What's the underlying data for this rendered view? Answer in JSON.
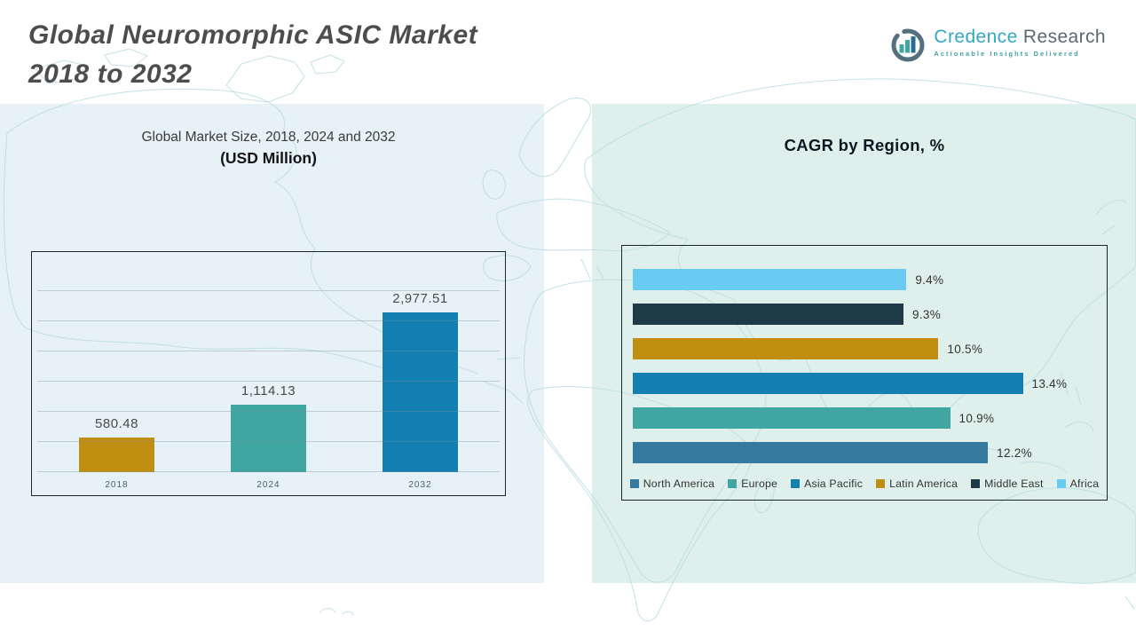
{
  "header": {
    "title_line1": "Global Neuromorphic ASIC Market",
    "title_line2": "2018 to 2032"
  },
  "logo": {
    "brand_primary": "Credence",
    "brand_secondary": "Research",
    "tagline": "Actionable Insights Delivered"
  },
  "chart_data": [
    {
      "id": "market_size",
      "type": "bar",
      "orientation": "vertical",
      "title": "Global Market Size, 2018, 2024 and 2032",
      "subtitle": "(USD Million)",
      "categories": [
        "2018",
        "2024",
        "2032"
      ],
      "values": [
        580.48,
        1114.13,
        2977.51
      ],
      "value_labels": [
        "580.48",
        "1,114.13",
        "2,977.51"
      ],
      "bar_colors": [
        "#C08E11",
        "#41A6A1",
        "#1480B1"
      ],
      "ylim": [
        0,
        3000
      ],
      "grid_step": 500,
      "grid": true,
      "legend_position": "none"
    },
    {
      "id": "cagr_by_region",
      "type": "bar",
      "orientation": "horizontal",
      "title": "CAGR by Region, %",
      "categories": [
        "Africa",
        "Middle East",
        "Latin America",
        "Asia Pacific",
        "Europe",
        "North America"
      ],
      "values": [
        9.4,
        9.3,
        10.5,
        13.4,
        10.9,
        12.2
      ],
      "value_labels": [
        "9.4%",
        "9.3%",
        "10.5%",
        "13.4%",
        "10.9%",
        "12.2%"
      ],
      "bar_colors": [
        "#69CBF1",
        "#1F3A47",
        "#C08E11",
        "#1480B1",
        "#41A6A1",
        "#35799C"
      ],
      "xlim": [
        0,
        14
      ],
      "grid": false,
      "legend_position": "bottom",
      "legend": [
        {
          "label": "North America",
          "color": "#35799C"
        },
        {
          "label": "Europe",
          "color": "#41A6A1"
        },
        {
          "label": "Asia Pacific",
          "color": "#1480B1"
        },
        {
          "label": "Latin America",
          "color": "#C08E11"
        },
        {
          "label": "Middle East",
          "color": "#1F3A47"
        },
        {
          "label": "Africa",
          "color": "#69CBF1"
        }
      ]
    }
  ],
  "colors": {
    "left_panel_bg": "#E7F1F8",
    "right_panel_bg": "#DFF0EC",
    "map_stroke": "#B9DCE2",
    "title_text": "#4D4D4D",
    "chart_box_border": "#1C242C",
    "brand_primary_color": "#35A8C6",
    "brand_secondary_color": "#5D6872",
    "tagline_color": "#3BA39F"
  }
}
